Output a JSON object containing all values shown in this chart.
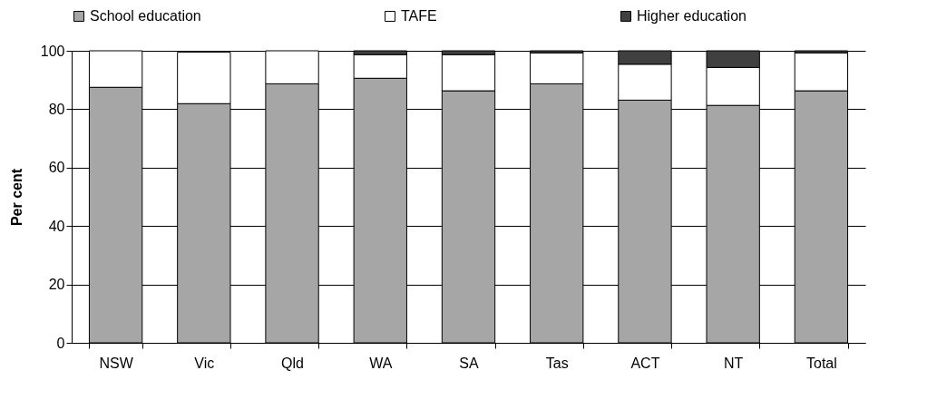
{
  "chart_data": {
    "type": "bar",
    "stacked": true,
    "ylabel": "Per cent",
    "categories": [
      "NSW",
      "Vic",
      "Qld",
      "WA",
      "SA",
      "Tas",
      "ACT",
      "NT",
      "Total"
    ],
    "series": [
      {
        "name": "School education",
        "color": "#a6a6a6",
        "values": [
          87.5,
          81.9,
          88.7,
          90.6,
          86.3,
          88.7,
          83.1,
          81.3,
          86.3
        ]
      },
      {
        "name": "TAFE",
        "color": "#ffffff",
        "values": [
          12.5,
          17.6,
          11.3,
          8.1,
          12.4,
          10.6,
          12.3,
          13.0,
          13.0
        ]
      },
      {
        "name": "Higher education",
        "color": "#404040",
        "values": [
          0,
          0,
          0,
          1.3,
          1.3,
          0.7,
          4.6,
          5.7,
          0.7
        ]
      }
    ],
    "ylim": [
      0,
      100
    ],
    "yticks": [
      0,
      20,
      40,
      60,
      80,
      100
    ],
    "grid": "y",
    "legend": "top"
  }
}
